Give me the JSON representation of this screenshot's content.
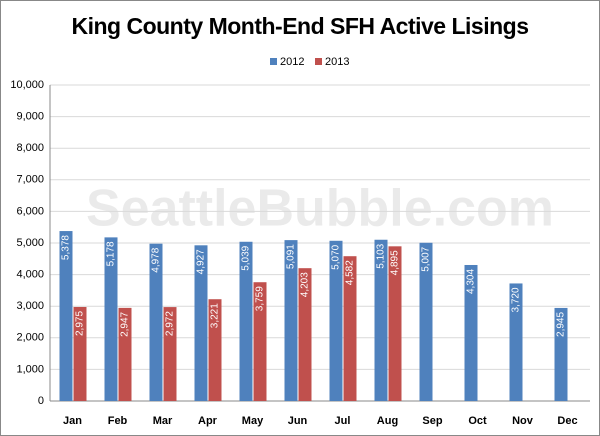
{
  "chart_data": {
    "type": "bar",
    "title": "King County Month-End SFH Active Lisings",
    "watermark": "SeattleBubble.com",
    "categories": [
      "Jan",
      "Feb",
      "Mar",
      "Apr",
      "May",
      "Jun",
      "Jul",
      "Aug",
      "Sep",
      "Oct",
      "Nov",
      "Dec"
    ],
    "series": [
      {
        "name": "2012",
        "color": "#4f81bd",
        "values": [
          5378,
          5178,
          4978,
          4927,
          5039,
          5091,
          5070,
          5103,
          5007,
          4304,
          3720,
          2945
        ],
        "value_labels": [
          "5,378",
          "5,178",
          "4,978",
          "4,927",
          "5,039",
          "5,091",
          "5,070",
          "5,103",
          "5,007",
          "4,304",
          "3,720",
          "2,945"
        ]
      },
      {
        "name": "2013",
        "color": "#c0504d",
        "values": [
          2975,
          2947,
          2972,
          3221,
          3759,
          4203,
          4582,
          4895,
          null,
          null,
          null,
          null
        ],
        "value_labels": [
          "2,975",
          "2,947",
          "2,972",
          "3,221",
          "3,759",
          "4,203",
          "4,582",
          "4,895",
          null,
          null,
          null,
          null
        ]
      }
    ],
    "ylim": [
      0,
      10000
    ],
    "yticks": [
      0,
      {
        "value": 1000,
        "label": "1,000"
      },
      {
        "value": 2000,
        "label": "2,000"
      },
      {
        "value": 3000,
        "label": "3,000"
      },
      {
        "value": 4000,
        "label": "4,000"
      },
      {
        "value": 5000,
        "label": "5,000"
      },
      {
        "value": 6000,
        "label": "6,000"
      },
      {
        "value": 7000,
        "label": "7,000"
      },
      {
        "value": 8000,
        "label": "8,000"
      },
      {
        "value": 9000,
        "label": "9,000"
      },
      {
        "value": 10000,
        "label": "10,000"
      }
    ],
    "grid": true,
    "legend": "top"
  }
}
